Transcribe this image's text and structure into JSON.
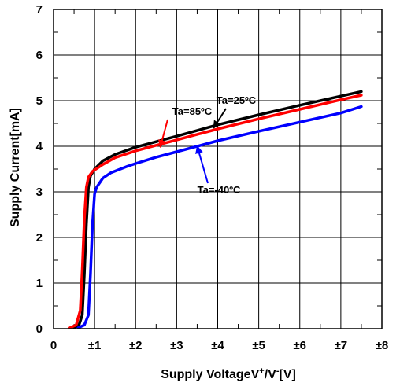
{
  "chart_data": {
    "type": "line",
    "xlabel": {
      "main": "Supply VoltageV",
      "sup1": "+",
      "mid": "/V",
      "sup2": "-",
      "end": "[V]"
    },
    "ylabel": "Supply Current[mA]",
    "xlim": [
      0,
      8
    ],
    "ylim": [
      0,
      7
    ],
    "x_ticks": [
      0,
      1,
      2,
      3,
      4,
      5,
      6,
      7,
      8
    ],
    "x_tick_labels": [
      "0",
      "±1",
      "±2",
      "±3",
      "±4",
      "±5",
      "±6",
      "±7",
      "±8"
    ],
    "y_ticks": [
      0,
      1,
      2,
      3,
      4,
      5,
      6,
      7
    ],
    "y_tick_labels": [
      "0",
      "1",
      "2",
      "3",
      "4",
      "5",
      "6",
      "7"
    ],
    "grid": true,
    "series": [
      {
        "name": "Ta=25ºC",
        "color": "#000000",
        "points": [
          [
            0.5,
            0.02
          ],
          [
            0.62,
            0.08
          ],
          [
            0.7,
            0.3
          ],
          [
            0.75,
            1.2
          ],
          [
            0.8,
            2.3
          ],
          [
            0.85,
            3.1
          ],
          [
            0.9,
            3.35
          ],
          [
            1.0,
            3.5
          ],
          [
            1.2,
            3.68
          ],
          [
            1.5,
            3.82
          ],
          [
            2.0,
            3.98
          ],
          [
            2.5,
            4.1
          ],
          [
            3.0,
            4.22
          ],
          [
            4.0,
            4.47
          ],
          [
            5.0,
            4.69
          ],
          [
            6.0,
            4.9
          ],
          [
            7.0,
            5.1
          ],
          [
            7.5,
            5.2
          ]
        ]
      },
      {
        "name": "Ta=85ºC",
        "color": "#ff0000",
        "points": [
          [
            0.4,
            0.02
          ],
          [
            0.55,
            0.08
          ],
          [
            0.65,
            0.4
          ],
          [
            0.7,
            1.3
          ],
          [
            0.75,
            2.4
          ],
          [
            0.8,
            3.1
          ],
          [
            0.85,
            3.32
          ],
          [
            0.95,
            3.45
          ],
          [
            1.2,
            3.6
          ],
          [
            1.5,
            3.75
          ],
          [
            2.0,
            3.9
          ],
          [
            2.5,
            4.02
          ],
          [
            3.0,
            4.14
          ],
          [
            4.0,
            4.38
          ],
          [
            5.0,
            4.6
          ],
          [
            6.0,
            4.81
          ],
          [
            7.0,
            5.02
          ],
          [
            7.5,
            5.12
          ]
        ]
      },
      {
        "name": "Ta=-40ºC",
        "color": "#0000ff",
        "points": [
          [
            0.6,
            0.02
          ],
          [
            0.75,
            0.08
          ],
          [
            0.85,
            0.3
          ],
          [
            0.9,
            1.2
          ],
          [
            0.95,
            2.3
          ],
          [
            1.0,
            2.95
          ],
          [
            1.05,
            3.1
          ],
          [
            1.2,
            3.3
          ],
          [
            1.4,
            3.42
          ],
          [
            1.8,
            3.56
          ],
          [
            2.0,
            3.62
          ],
          [
            2.5,
            3.76
          ],
          [
            3.0,
            3.88
          ],
          [
            4.0,
            4.12
          ],
          [
            5.0,
            4.33
          ],
          [
            6.0,
            4.53
          ],
          [
            7.0,
            4.73
          ],
          [
            7.5,
            4.87
          ]
        ]
      }
    ],
    "annotations": [
      {
        "label": "Ta=85ºC",
        "color": "#ff0000",
        "arrow_to": [
          2.6,
          3.98
        ]
      },
      {
        "label": "Ta=25ºC",
        "color": "#000000",
        "arrow_to": [
          3.9,
          4.4
        ]
      },
      {
        "label": "Ta=-40ºC",
        "color": "#0000ff",
        "arrow_to": [
          3.5,
          4.0
        ]
      }
    ]
  }
}
